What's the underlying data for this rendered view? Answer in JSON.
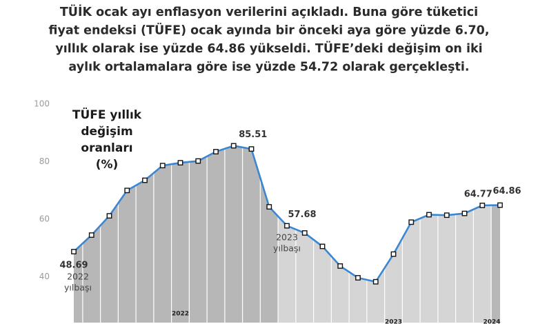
{
  "chart_data": {
    "type": "area-line",
    "title": [
      "TÜİK ocak ayı enflasyon verilerini açıkladı. Buna göre tüketici",
      "fiyat endeksi (TÜFE) ocak ayında bir önceki aya göre yüzde 6.70,",
      "yıllık olarak ise yüzde 64.86 yükseldi. TÜFE’deki değişim on iki",
      "aylık ortalamalara göre ise yüzde 54.72 olarak gerçekleşti."
    ],
    "subtitle": [
      "TÜFE yıllık",
      "değişim",
      "oranları",
      "(%)"
    ],
    "categories": [
      null,
      null,
      null,
      null,
      null,
      null,
      null,
      null,
      null,
      null,
      null,
      null,
      null,
      null,
      null,
      null,
      null,
      null,
      null,
      null,
      null,
      null,
      null,
      null,
      null
    ],
    "year_labels": [
      "2022",
      "2023",
      "2024"
    ],
    "values": [
      48.69,
      54.44,
      61.14,
      69.97,
      73.5,
      78.62,
      79.6,
      80.21,
      83.45,
      85.51,
      84.39,
      64.27,
      57.68,
      55.18,
      50.51,
      43.68,
      39.59,
      38.21,
      47.83,
      58.94,
      61.53,
      61.36,
      61.98,
      64.77,
      64.86
    ],
    "annotations": [
      [
        "2022",
        "yılbaşı"
      ],
      [
        "2023",
        "yılbaşı"
      ]
    ],
    "color": "#3a86d0",
    "ylim": [
      24,
      100
    ],
    "yticks": [
      40,
      60,
      80,
      100
    ],
    "grid": false
  }
}
